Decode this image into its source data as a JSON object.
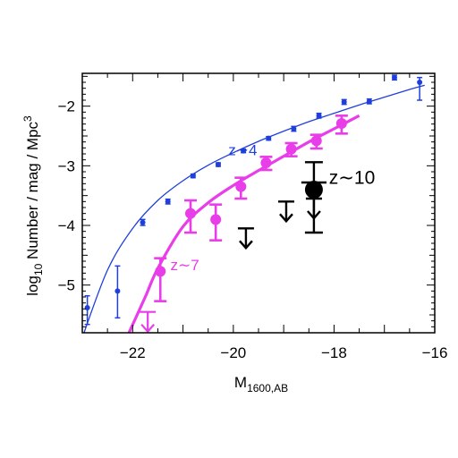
{
  "chart_data": {
    "type": "scatter",
    "xlabel": "M",
    "xlabel_sub": "1600,AB",
    "ylabel_prefix": "log",
    "ylabel_sub": "10",
    "ylabel_main": " Number / mag / Mpc",
    "ylabel_sup": "3",
    "xlim": [
      -23,
      -16
    ],
    "ylim": [
      -5.8,
      -1.45
    ],
    "x_ticks": [
      -22,
      -20,
      -18,
      -16
    ],
    "x_tick_labels": [
      "−22",
      "−20",
      "−18",
      "−16"
    ],
    "y_ticks": [
      -5,
      -4,
      -3,
      -2
    ],
    "y_tick_labels": [
      "−5",
      "−4",
      "−3",
      "−2"
    ],
    "grid": false,
    "colors": {
      "z4": "#1f3fdc",
      "z7": "#e83de8",
      "z10": "#000000"
    },
    "series": [
      {
        "name": "z~4",
        "points": [
          {
            "x": -22.9,
            "y": -5.38,
            "up": 0.2,
            "down": 0.28
          },
          {
            "x": -22.3,
            "y": -5.1,
            "up": 0.42,
            "down": 0.45
          },
          {
            "x": -21.8,
            "y": -3.95,
            "up": 0.05,
            "down": 0.05
          },
          {
            "x": -21.3,
            "y": -3.6,
            "up": 0.04,
            "down": 0.04
          },
          {
            "x": -20.8,
            "y": -3.17,
            "up": 0.03,
            "down": 0.03
          },
          {
            "x": -20.3,
            "y": -2.98,
            "up": 0.03,
            "down": 0.03
          },
          {
            "x": -19.8,
            "y": -2.75,
            "up": 0.03,
            "down": 0.03
          },
          {
            "x": -19.3,
            "y": -2.54,
            "up": 0.03,
            "down": 0.03
          },
          {
            "x": -18.8,
            "y": -2.38,
            "up": 0.04,
            "down": 0.04
          },
          {
            "x": -18.3,
            "y": -2.16,
            "up": 0.04,
            "down": 0.04
          },
          {
            "x": -17.8,
            "y": -1.93,
            "up": 0.04,
            "down": 0.04
          },
          {
            "x": -17.3,
            "y": -1.92,
            "up": 0.04,
            "down": 0.04
          },
          {
            "x": -16.8,
            "y": -1.52,
            "up": 0.04,
            "down": 0.04
          },
          {
            "x": -16.3,
            "y": -1.6,
            "up": 0.08,
            "down": 0.3
          }
        ],
        "fit": [
          [
            -23,
            -5.88
          ],
          [
            -22.5,
            -4.75
          ],
          [
            -22,
            -4.05
          ],
          [
            -21.5,
            -3.58
          ],
          [
            -21,
            -3.25
          ],
          [
            -20.5,
            -2.99
          ],
          [
            -20,
            -2.78
          ],
          [
            -19.5,
            -2.59
          ],
          [
            -19,
            -2.42
          ],
          [
            -18.5,
            -2.26
          ],
          [
            -18,
            -2.12
          ],
          [
            -17.5,
            -1.98
          ],
          [
            -17,
            -1.85
          ],
          [
            -16.5,
            -1.72
          ],
          [
            -16.2,
            -1.65
          ]
        ]
      },
      {
        "name": "z~7",
        "points": [
          {
            "x": -21.45,
            "y": -4.77,
            "up": 0.22,
            "down": 0.5
          },
          {
            "x": -20.85,
            "y": -3.8,
            "up": 0.22,
            "down": 0.32
          },
          {
            "x": -20.35,
            "y": -3.9,
            "up": 0.25,
            "down": 0.35
          },
          {
            "x": -19.85,
            "y": -3.35,
            "up": 0.15,
            "down": 0.2
          },
          {
            "x": -19.35,
            "y": -2.95,
            "up": 0.1,
            "down": 0.12
          },
          {
            "x": -18.85,
            "y": -2.72,
            "up": 0.1,
            "down": 0.12
          },
          {
            "x": -18.35,
            "y": -2.58,
            "up": 0.1,
            "down": 0.13
          },
          {
            "x": -17.85,
            "y": -2.29,
            "up": 0.13,
            "down": 0.17
          }
        ],
        "upper_limits": [
          {
            "x": -21.7,
            "y": -5.45
          }
        ],
        "fit": [
          [
            -22.1,
            -5.85
          ],
          [
            -21.75,
            -5.2
          ],
          [
            -21.5,
            -4.72
          ],
          [
            -21,
            -4.02
          ],
          [
            -20.5,
            -3.62
          ],
          [
            -20,
            -3.33
          ],
          [
            -19.5,
            -3.08
          ],
          [
            -19,
            -2.84
          ],
          [
            -18.5,
            -2.6
          ],
          [
            -18,
            -2.38
          ],
          [
            -17.5,
            -2.16
          ]
        ]
      },
      {
        "name": "z~10",
        "points": [
          {
            "x": -18.4,
            "y": -3.4,
            "up": 0.46,
            "down": 0.72
          }
        ],
        "hline": {
          "x": -18.4,
          "y": -3.28,
          "half_width": 0.25
        },
        "upper_limits": [
          {
            "x": -19.75,
            "y": -4.05
          },
          {
            "x": -18.95,
            "y": -3.6
          },
          {
            "x": -18.4,
            "y": -3.55
          }
        ]
      }
    ],
    "annotations": [
      {
        "text": "z∼4",
        "x": -20.1,
        "y": -2.82,
        "color": "z4",
        "size": 17
      },
      {
        "text": "z∼7",
        "x": -21.25,
        "y": -4.75,
        "color": "z7",
        "size": 17
      },
      {
        "text": "z∼10",
        "x": -18.1,
        "y": -3.3,
        "color": "z10",
        "size": 21
      }
    ]
  }
}
